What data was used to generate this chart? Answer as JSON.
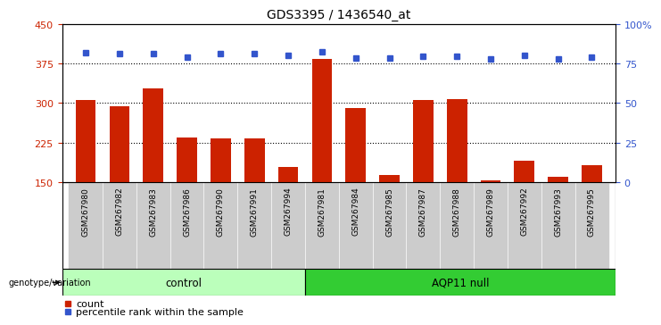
{
  "title": "GDS3395 / 1436540_at",
  "samples": [
    "GSM267980",
    "GSM267982",
    "GSM267983",
    "GSM267986",
    "GSM267990",
    "GSM267991",
    "GSM267994",
    "GSM267981",
    "GSM267984",
    "GSM267985",
    "GSM267987",
    "GSM267988",
    "GSM267989",
    "GSM267992",
    "GSM267993",
    "GSM267995"
  ],
  "counts": [
    305,
    293,
    328,
    234,
    232,
    232,
    178,
    383,
    290,
    163,
    305,
    308,
    153,
    190,
    160,
    182
  ],
  "percentile_yvals": [
    395,
    393,
    394,
    387,
    393,
    393,
    390,
    398,
    385,
    385,
    388,
    388,
    383,
    391,
    383,
    387
  ],
  "control_count": 7,
  "ylim_left": [
    150,
    450
  ],
  "yticks_left": [
    150,
    225,
    300,
    375,
    450
  ],
  "ylim_right": [
    0,
    100
  ],
  "yticks_right": [
    0,
    25,
    50,
    75,
    100
  ],
  "bar_color": "#cc2200",
  "dot_color": "#3355cc",
  "dotted_lines": [
    225,
    300,
    375
  ],
  "tick_label_bg": "#cccccc",
  "control_bg": "#bbffbb",
  "aqp11_bg": "#33cc33",
  "label_count": "count",
  "label_percentile": "percentile rank within the sample",
  "xlabel_genotype": "genotype/variation"
}
